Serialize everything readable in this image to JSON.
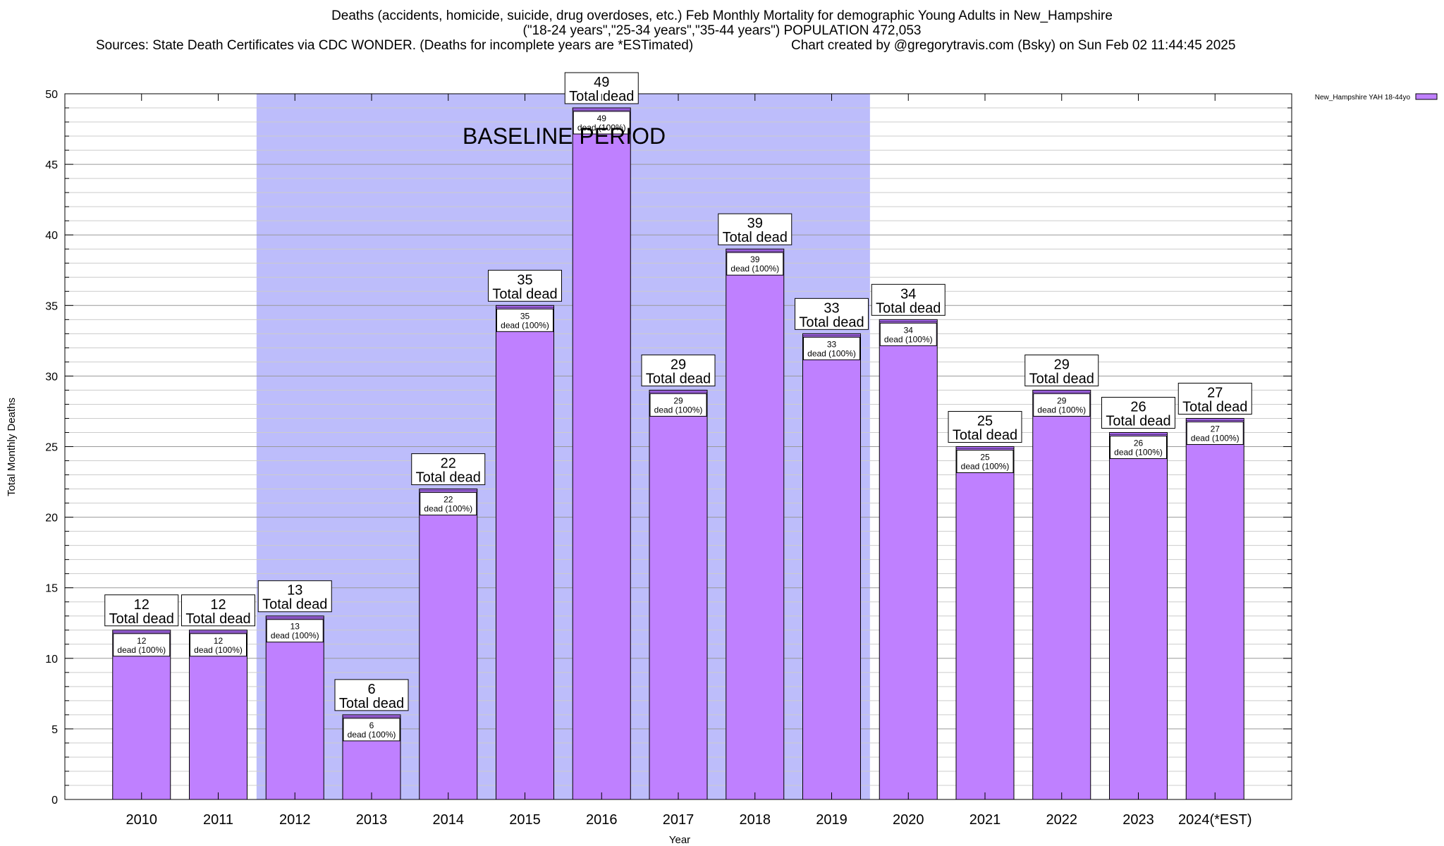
{
  "chart_data": {
    "type": "bar",
    "title_line1": "Deaths (accidents, homicide, suicide, drug overdoses, etc.) Feb Monthly Mortality for demographic Young Adults in New_Hampshire",
    "title_line2": "(\"18-24 years\",\"25-34 years\",\"35-44 years\") POPULATION 472,053",
    "title_sources": "Sources: State Death Certificates via CDC WONDER. (Deaths for incomplete years are *ESTimated)",
    "title_credit": "Chart created by @gregorytravis.com (Bsky) on Sun Feb 02 11:44:45 2025",
    "xlabel": "Year",
    "ylabel": "Total Monthly Deaths",
    "ylim": [
      0,
      50
    ],
    "yticks": [
      0,
      5,
      10,
      15,
      20,
      25,
      30,
      35,
      40,
      45,
      50
    ],
    "categories": [
      "2010",
      "2011",
      "2012",
      "2013",
      "2014",
      "2015",
      "2016",
      "2017",
      "2018",
      "2019",
      "2020",
      "2021",
      "2022",
      "2023",
      "2024(*EST)"
    ],
    "series": [
      {
        "name": "New_Hampshire YAH 18-44yo",
        "values": [
          12,
          12,
          13,
          6,
          22,
          35,
          49,
          29,
          39,
          33,
          34,
          25,
          29,
          26,
          27
        ]
      }
    ],
    "total_label_suffix": "Total dead",
    "inner_label_suffix": "dead (100%)",
    "baseline": {
      "label": "BASELINE PERIOD",
      "from_category": "2012",
      "to_category": "2019"
    },
    "legend_position": "top-right",
    "grid": true,
    "colors": {
      "bar": "#bf80ff",
      "bar_top": "#9a5ce0",
      "baseline_band": "#bdbdfb",
      "grid": "#aaaaaa"
    }
  }
}
